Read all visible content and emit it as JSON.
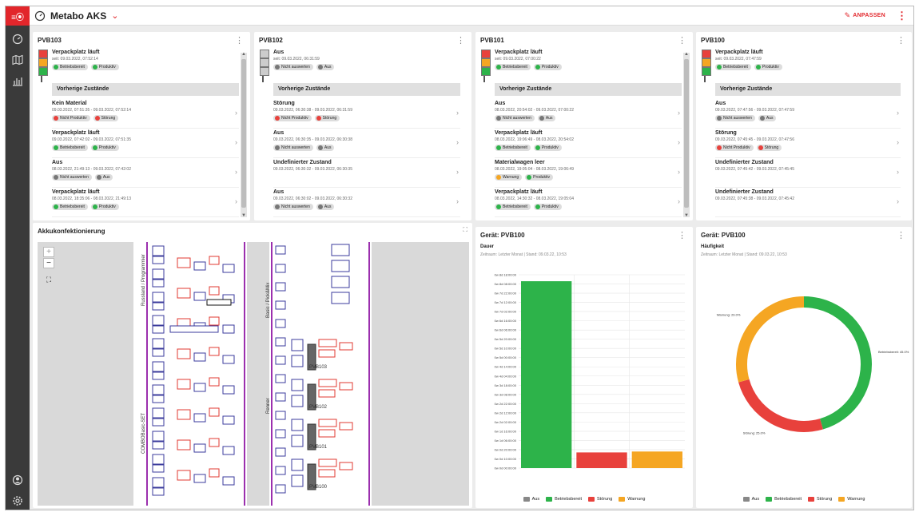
{
  "app": {
    "title": "Metabo AKS",
    "logo_text": "≡⦿",
    "customize_label": "ANPASSEN",
    "brand_color": "#e2262b"
  },
  "sidebar": {
    "icons": [
      "dashboard-icon",
      "map-icon",
      "bar-chart-icon"
    ],
    "bottom_icons": [
      "user-icon",
      "settings-icon"
    ]
  },
  "status_colors": {
    "Betriebsbereit": "#2db34a",
    "Produktiv": "#2db34a",
    "Nicht Produktiv": "#e8413c",
    "Störung": "#e8413c",
    "Nicht auswerten": "#777777",
    "Aus": "#777777",
    "Warnung": "#f5a623"
  },
  "prev_label": "Vorherige Zustände",
  "stations": [
    {
      "name": "PVB103",
      "lamp": [
        "#e8413c",
        "#f5a623",
        "#2db34a"
      ],
      "current": {
        "state": "Verpackplatz läuft",
        "since": "seit: 09.03.2022, 07:52:14",
        "tags": [
          "Betriebsbereit",
          "Produktiv"
        ]
      },
      "history": [
        {
          "state": "Kein Material",
          "range": "09.03.2022, 07:51:35 - 09.03.2022, 07:52:14",
          "tags": [
            "Nicht Produktiv",
            "Störung"
          ]
        },
        {
          "state": "Verpackplatz läuft",
          "range": "09.03.2022, 07:42:02 - 09.03.2022, 07:51:35",
          "tags": [
            "Betriebsbereit",
            "Produktiv"
          ]
        },
        {
          "state": "Aus",
          "range": "08.03.2022, 21:49:13 - 09.03.2022, 07:42:02",
          "tags": [
            "Nicht auswerten",
            "Aus"
          ]
        },
        {
          "state": "Verpackplatz läuft",
          "range": "08.03.2022, 18:35:06 - 08.03.2022, 21:49:13",
          "tags": [
            "Betriebsbereit",
            "Produktiv"
          ]
        }
      ]
    },
    {
      "name": "PVB102",
      "lamp": [
        "#cccccc",
        "#cccccc",
        "#cccccc"
      ],
      "current": {
        "state": "Aus",
        "since": "seit: 09.03.2022, 06:31:59",
        "tags": [
          "Nicht auswerten",
          "Aus"
        ]
      },
      "history": [
        {
          "state": "Störung",
          "range": "09.03.2022, 06:30:38 - 09.03.2022, 06:31:59",
          "tags": [
            "Nicht Produktiv",
            "Störung"
          ]
        },
        {
          "state": "Aus",
          "range": "09.03.2022, 06:30:35 - 09.03.2022, 06:30:38",
          "tags": [
            "Nicht auswerten",
            "Aus"
          ]
        },
        {
          "state": "Undefinierter Zustand",
          "range": "09.03.2022, 06:30:32 - 09.03.2022, 06:30:35",
          "tags": []
        },
        {
          "state": "Aus",
          "range": "09.03.2022, 06:30:02 - 09.03.2022, 06:30:32",
          "tags": [
            "Nicht auswerten",
            "Aus"
          ]
        }
      ]
    },
    {
      "name": "PVB101",
      "lamp": [
        "#e8413c",
        "#f5a623",
        "#2db34a"
      ],
      "current": {
        "state": "Verpackplatz läuft",
        "since": "seit: 09.03.2022, 07:00:22",
        "tags": [
          "Betriebsbereit",
          "Produktiv"
        ]
      },
      "history": [
        {
          "state": "Aus",
          "range": "08.03.2022, 20:54:02 - 09.03.2022, 07:00:22",
          "tags": [
            "Nicht auswerten",
            "Aus"
          ]
        },
        {
          "state": "Verpackplatz läuft",
          "range": "08.03.2022, 19:06:49 - 08.03.2022, 20:54:02",
          "tags": [
            "Betriebsbereit",
            "Produktiv"
          ]
        },
        {
          "state": "Materialwagen leer",
          "range": "08.03.2022, 19:05:04 - 08.03.2022, 19:06:49",
          "tags": [
            "Warnung",
            "Produktiv"
          ]
        },
        {
          "state": "Verpackplatz läuft",
          "range": "08.03.2022, 14:30:32 - 08.03.2022, 19:05:04",
          "tags": [
            "Betriebsbereit",
            "Produktiv"
          ]
        }
      ]
    },
    {
      "name": "PVB100",
      "lamp": [
        "#e8413c",
        "#f5a623",
        "#2db34a"
      ],
      "current": {
        "state": "Verpackplatz läuft",
        "since": "seit: 09.03.2022, 07:47:59",
        "tags": [
          "Betriebsbereit",
          "Produktiv"
        ]
      },
      "history": [
        {
          "state": "Aus",
          "range": "09.03.2022, 07:47:56 - 09.03.2022, 07:47:59",
          "tags": [
            "Nicht auswerten",
            "Aus"
          ]
        },
        {
          "state": "Störung",
          "range": "09.03.2022, 07:45:45 - 09.03.2022, 07:47:56",
          "tags": [
            "Nicht Produktiv",
            "Störung"
          ]
        },
        {
          "state": "Undefinierter Zustand",
          "range": "09.03.2022, 07:45:42 - 09.03.2022, 07:45:45",
          "tags": []
        },
        {
          "state": "Undefinierter Zustand",
          "range": "09.03.2022, 07:45:38 - 09.03.2022, 07:45:42",
          "tags": []
        }
      ]
    }
  ],
  "map": {
    "title": "Akkukonfektionierung",
    "zoom_in": "+",
    "zoom_out": "−",
    "labels": {
      "left_top": "Russland / Programmier",
      "left_bottom": "COMBOBasic-SET",
      "right_top": "Basic / Pick&Mix",
      "right_bottom": "Renner"
    },
    "stations": [
      "PVB103",
      "PVB102",
      "PVB101",
      "PVB100"
    ]
  },
  "bar_panel": {
    "title": "Gerät: PVB100",
    "subtitle": "Dauer",
    "info": "Zeitraum: Letzter Monat | Stand: 09.03.22, 10:53"
  },
  "donut_panel": {
    "title": "Gerät: PVB100",
    "subtitle": "Häufigkeit",
    "info": "Zeitraum: Letzter Monat | Stand: 09.03.22, 10:53"
  },
  "legend": [
    {
      "name": "Aus",
      "color": "#888888"
    },
    {
      "name": "Betriebsbereit",
      "color": "#2db34a"
    },
    {
      "name": "Störung",
      "color": "#e8413c"
    },
    {
      "name": "Warnung",
      "color": "#f5a623"
    }
  ],
  "chart_data": [
    {
      "type": "bar",
      "title": "Dauer",
      "categories": [
        "Betriebsbereit",
        "Störung",
        "Warnung"
      ],
      "values_hours": [
        203,
        17,
        18
      ],
      "colors": [
        "#2db34a",
        "#e8413c",
        "#f5a623"
      ],
      "y_tick_labels": [
        "0w 0d 00:00:00",
        "0w 0d 10:00:00",
        "0w 0d 20:00:00",
        "0w 1d 06:00:00",
        "0w 1d 16:00:00",
        "0w 2d 02:00:00",
        "0w 2d 12:00:00",
        "0w 2d 22:00:00",
        "0w 3d 08:00:00",
        "0w 3d 18:00:00",
        "0w 4d 04:00:00",
        "0w 4d 14:00:00",
        "0w 5d 00:00:00",
        "0w 5d 10:00:00",
        "0w 5d 20:00:00",
        "0w 6d 06:00:00",
        "0w 6d 16:00:00",
        "0w 7d 02:00:00",
        "0w 7d 12:00:00",
        "0w 7d 22:00:00",
        "0w 8d 08:00:00",
        "0w 8d 18:00:00"
      ],
      "ylim_hours": [
        0,
        210
      ],
      "legend": [
        "Aus",
        "Betriebsbereit",
        "Störung",
        "Warnung"
      ]
    },
    {
      "type": "pie",
      "title": "Häufigkeit",
      "labels": [
        "Betriebsbereit",
        "Störung",
        "Warnung"
      ],
      "values": [
        45.0,
        25.0,
        29.0
      ],
      "slice_labels": [
        "Betriebsbereit: 45.0%",
        "Störung: 25.0%",
        "Warnung: 29.0%"
      ],
      "colors": [
        "#2db34a",
        "#e8413c",
        "#f5a623"
      ],
      "legend": [
        "Aus",
        "Betriebsbereit",
        "Störung",
        "Warnung"
      ]
    }
  ]
}
